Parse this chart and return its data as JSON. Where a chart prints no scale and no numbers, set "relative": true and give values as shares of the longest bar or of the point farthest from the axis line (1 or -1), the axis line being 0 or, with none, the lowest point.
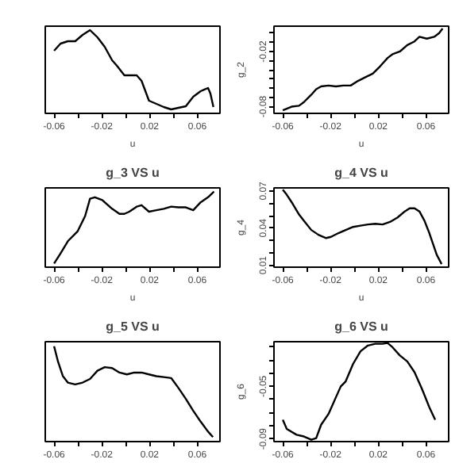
{
  "chart_data": [
    {
      "type": "line",
      "relative": true,
      "xlabel": "u",
      "color": "#000000",
      "line_style": "solid",
      "grid": false,
      "xlim": [
        -0.0674,
        0.079
      ],
      "xticks": [
        -0.06,
        {
          "value": -0.04,
          "label": null
        },
        -0.02,
        {
          "value": 0,
          "label": null
        },
        0.02,
        {
          "value": 0.04,
          "label": null
        },
        0.06
      ],
      "x": [
        -0.06,
        -0.0546,
        -0.0485,
        -0.0423,
        -0.0361,
        -0.0299,
        -0.0237,
        -0.0176,
        -0.0114,
        -0.0073,
        -0.0011,
        0.0051,
        0.0092,
        0.0133,
        0.0195,
        0.0257,
        0.0319,
        0.0381,
        0.0442,
        0.0504,
        0.0566,
        0.0628,
        0.069,
        0.071,
        0.0735
      ],
      "values": [
        0.74,
        0.83,
        0.86,
        0.86,
        0.94,
        1.0,
        0.91,
        0.79,
        0.62,
        0.55,
        0.43,
        0.43,
        0.43,
        0.36,
        0.11,
        0.07,
        0.03,
        0,
        0.02,
        0.04,
        0.16,
        0.23,
        0.27,
        0.2,
        0.03
      ]
    },
    {
      "type": "line",
      "xlabel": "u",
      "ylabel": "g_2",
      "color": "#000000",
      "line_style": "solid",
      "grid": false,
      "xlim": [
        -0.0674,
        0.079
      ],
      "xticks": [
        -0.06,
        {
          "value": -0.04,
          "label": null
        },
        -0.02,
        {
          "value": 0,
          "label": null
        },
        0.02,
        {
          "value": 0.04,
          "label": null
        },
        0.06
      ],
      "ylim": [
        -0.0873,
        0.0076
      ],
      "yticks": [
        -0.08,
        {
          "value": -0.07,
          "label": null
        },
        {
          "value": -0.06,
          "label": null
        },
        {
          "value": -0.05,
          "label": null
        },
        {
          "value": -0.04,
          "label": null
        },
        {
          "value": -0.03,
          "label": null
        },
        -0.02,
        {
          "value": -0.01,
          "label": null
        },
        {
          "value": 0,
          "label": null
        }
      ],
      "x": [
        -0.06,
        -0.0526,
        -0.0464,
        -0.0423,
        -0.0361,
        -0.032,
        -0.0279,
        -0.0217,
        -0.0155,
        -0.0093,
        -0.0031,
        0.003,
        0.0092,
        0.0154,
        0.0216,
        0.0278,
        0.0319,
        0.0381,
        0.0443,
        0.0504,
        0.0545,
        0.0607,
        0.0669,
        0.071,
        0.0739
      ],
      "values": [
        -0.084,
        -0.08,
        -0.079,
        -0.075,
        -0.067,
        -0.061,
        -0.058,
        -0.057,
        -0.058,
        -0.057,
        -0.057,
        -0.052,
        -0.048,
        -0.044,
        -0.036,
        -0.027,
        -0.023,
        -0.02,
        -0.013,
        -0.009,
        -0.004,
        -0.006,
        -0.004,
        0.0,
        0.005
      ]
    },
    {
      "type": "line",
      "relative": true,
      "title": "g_3 VS u",
      "xlabel": "u",
      "color": "#000000",
      "line_style": "solid",
      "grid": false,
      "xlim": [
        -0.0674,
        0.079
      ],
      "xticks": [
        -0.06,
        {
          "value": -0.04,
          "label": null
        },
        -0.02,
        {
          "value": 0,
          "label": null
        },
        0.02,
        {
          "value": 0.04,
          "label": null
        },
        0.06
      ],
      "x": [
        -0.06,
        -0.0546,
        -0.0485,
        -0.0402,
        -0.034,
        -0.0299,
        -0.0258,
        -0.0196,
        -0.0114,
        -0.0052,
        -0.0011,
        0.003,
        0.0092,
        0.0133,
        0.0195,
        0.0257,
        0.0319,
        0.0381,
        0.0442,
        0.0504,
        0.0566,
        0.0628,
        0.069,
        0.074
      ],
      "values": [
        0,
        0.14,
        0.31,
        0.45,
        0.66,
        0.9,
        0.92,
        0.88,
        0.76,
        0.69,
        0.69,
        0.72,
        0.79,
        0.81,
        0.72,
        0.74,
        0.76,
        0.79,
        0.78,
        0.78,
        0.74,
        0.85,
        0.92,
        1.0
      ]
    },
    {
      "type": "line",
      "title": "g_4 VS u",
      "xlabel": "u",
      "ylabel": "g_4",
      "color": "#000000",
      "line_style": "solid",
      "grid": false,
      "xlim": [
        -0.0674,
        0.079
      ],
      "xticks": [
        -0.06,
        {
          "value": -0.04,
          "label": null
        },
        -0.02,
        {
          "value": 0,
          "label": null
        },
        0.02,
        {
          "value": 0.04,
          "label": null
        },
        0.06
      ],
      "ylim": [
        0.0085,
        0.0725
      ],
      "yticks": [
        0.01,
        {
          "value": 0.02,
          "label": null
        },
        {
          "value": 0.03,
          "label": null
        },
        0.04,
        {
          "value": 0.05,
          "label": null
        },
        {
          "value": 0.06,
          "label": null
        },
        0.07
      ],
      "x": [
        -0.06,
        -0.0567,
        -0.0526,
        -0.0464,
        -0.0423,
        -0.0361,
        -0.0299,
        -0.0237,
        -0.0196,
        -0.0134,
        -0.0073,
        -0.0011,
        0.0051,
        0.0113,
        0.0175,
        0.0236,
        0.0298,
        0.036,
        0.0422,
        0.0463,
        0.0504,
        0.0545,
        0.0587,
        0.0628,
        0.069,
        0.0731
      ],
      "values": [
        0.071,
        0.067,
        0.061,
        0.051,
        0.046,
        0.0385,
        0.0345,
        0.032,
        0.033,
        0.036,
        0.0385,
        0.041,
        0.042,
        0.043,
        0.0435,
        0.043,
        0.045,
        0.0485,
        0.0535,
        0.056,
        0.056,
        0.0535,
        0.046,
        0.036,
        0.0185,
        0.011
      ]
    },
    {
      "type": "line",
      "relative": true,
      "title": "g_5 VS u",
      "color": "#000000",
      "line_style": "solid",
      "grid": false,
      "xlim": [
        -0.0674,
        0.079
      ],
      "xticks": [
        -0.06,
        {
          "value": -0.04,
          "label": null
        },
        -0.02,
        {
          "value": 0,
          "label": null
        },
        0.02,
        {
          "value": 0.04,
          "label": null
        },
        0.06
      ],
      "x": [
        -0.06,
        -0.0567,
        -0.0526,
        -0.0485,
        -0.0423,
        -0.0361,
        -0.0299,
        -0.0237,
        -0.0176,
        -0.0114,
        -0.0052,
        0.001,
        0.0072,
        0.0133,
        0.0195,
        0.0257,
        0.0319,
        0.0381,
        0.0442,
        0.0504,
        0.0566,
        0.0628,
        0.069,
        0.0731
      ],
      "values": [
        1,
        0.83,
        0.67,
        0.6,
        0.58,
        0.6,
        0.64,
        0.73,
        0.77,
        0.76,
        0.71,
        0.69,
        0.71,
        0.71,
        0.69,
        0.67,
        0.66,
        0.65,
        0.54,
        0.42,
        0.29,
        0.17,
        0.06,
        0
      ]
    },
    {
      "type": "line",
      "title": "g_6 VS u",
      "ylabel": "g_6",
      "color": "#000000",
      "line_style": "solid",
      "grid": false,
      "xlim": [
        -0.0674,
        0.079
      ],
      "xticks": [
        -0.06,
        {
          "value": -0.04,
          "label": null
        },
        -0.02,
        {
          "value": 0,
          "label": null
        },
        0.02,
        {
          "value": 0.04,
          "label": null
        },
        0.06
      ],
      "ylim": [
        -0.092,
        -0.016
      ],
      "yticks": [
        -0.09,
        {
          "value": -0.08,
          "label": null
        },
        {
          "value": -0.07,
          "label": null
        },
        {
          "value": -0.06,
          "label": null
        },
        -0.05,
        {
          "value": -0.04,
          "label": null
        },
        {
          "value": -0.03,
          "label": null
        },
        {
          "value": -0.02,
          "label": null
        }
      ],
      "x": [
        -0.06,
        -0.0567,
        -0.0485,
        -0.0423,
        -0.0361,
        -0.032,
        -0.0279,
        -0.0217,
        -0.0155,
        -0.0114,
        -0.0073,
        -0.0011,
        0.0051,
        0.0113,
        0.0175,
        0.0236,
        0.0278,
        0.0319,
        0.0381,
        0.0443,
        0.0504,
        0.0566,
        0.0628,
        0.0677
      ],
      "values": [
        -0.0754,
        -0.0824,
        -0.0868,
        -0.0881,
        -0.0906,
        -0.0894,
        -0.0792,
        -0.071,
        -0.0583,
        -0.05,
        -0.0462,
        -0.0329,
        -0.0233,
        -0.0189,
        -0.0176,
        -0.0176,
        -0.017,
        -0.0202,
        -0.0265,
        -0.031,
        -0.0392,
        -0.0519,
        -0.0659,
        -0.0754
      ]
    }
  ]
}
